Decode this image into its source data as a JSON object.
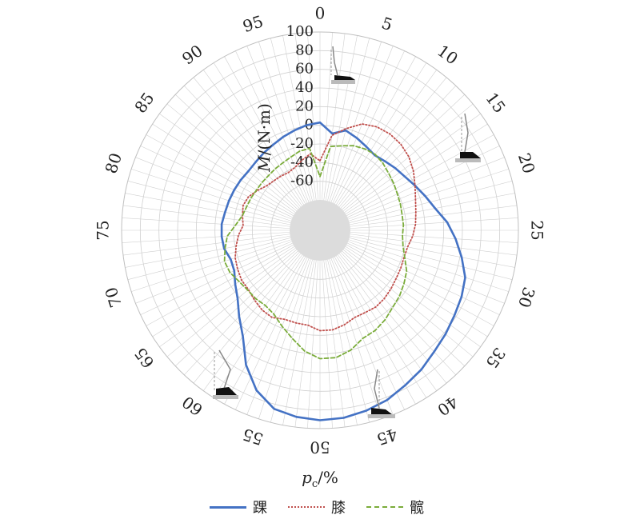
{
  "chart_data": {
    "type": "polar-line",
    "r_axis_label_italic": "M",
    "r_axis_label_rest": "/(N·m)",
    "r_ticks": [
      100,
      80,
      60,
      40,
      20,
      0,
      -20,
      -40,
      -60
    ],
    "r_range": [
      -80,
      100
    ],
    "angle_axis_label_italic": "p",
    "angle_axis_label_sub": "c",
    "angle_axis_label_rest": "/%",
    "angle_ticks": [
      0,
      5,
      10,
      15,
      20,
      25,
      30,
      35,
      40,
      45,
      50,
      55,
      60,
      65,
      70,
      75,
      80,
      85,
      90,
      95
    ],
    "angle_range": [
      0,
      100
    ],
    "direction": "clockwise",
    "zero_angle_position": "top",
    "grid": true,
    "legend_placement": "bottom",
    "x": [
      0,
      2,
      4,
      6,
      8,
      10,
      12,
      14,
      16,
      18,
      20,
      22,
      24,
      26,
      28,
      30,
      32,
      34,
      36,
      38,
      40,
      42,
      44,
      46,
      48,
      50,
      52,
      54,
      56,
      58,
      60,
      62,
      64,
      66,
      68,
      70,
      72,
      74,
      76,
      78,
      80,
      82,
      84,
      86,
      88,
      90,
      92,
      94,
      96,
      98
    ],
    "series": [
      {
        "name": "踝",
        "color": "#4472c4",
        "style": "solid",
        "values": [
          3,
          -8,
          -2,
          -6,
          -10,
          -13,
          -11,
          -8,
          -5,
          0,
          6,
          13,
          24,
          33,
          42,
          51,
          55,
          58,
          62,
          66,
          72,
          77,
          83,
          87,
          90,
          91,
          89,
          85,
          72,
          52,
          28,
          14,
          2,
          -5,
          -11,
          -12,
          -8,
          -7,
          -7,
          -9,
          -10,
          -11,
          -12,
          -13,
          -12,
          -10,
          -8,
          -5,
          -2,
          1
        ]
      },
      {
        "name": "膝",
        "color": "#c0504d",
        "style": "dotted",
        "values": [
          -38,
          -10,
          0,
          10,
          14,
          15,
          14,
          11,
          6,
          0,
          -5,
          -8,
          -10,
          -13,
          -17,
          -18,
          -17,
          -16,
          -14,
          -12,
          -11,
          -12,
          -12,
          -8,
          -5,
          -5,
          -10,
          -10,
          -10,
          -6,
          -7,
          -10,
          -13,
          -13,
          -15,
          -17,
          -21,
          -25,
          -30,
          -28,
          -26,
          -28,
          -33,
          -38,
          -40,
          -41,
          -42,
          -40,
          -35,
          -30
        ]
      },
      {
        "name": "髋",
        "color": "#7aac3a",
        "style": "dashed",
        "values": [
          -55,
          -22,
          -19,
          -15,
          -13,
          -12,
          -14,
          -17,
          -19,
          -21,
          -22,
          -23,
          -23,
          -24,
          -22,
          -17,
          -10,
          -6,
          -2,
          1,
          6,
          10,
          12,
          20,
          25,
          25,
          18,
          7,
          -2,
          -10,
          -13,
          -12,
          -12,
          -10,
          -6,
          -5,
          -9,
          -13,
          -22,
          -28,
          -30,
          -31,
          -32,
          -32,
          -32,
          -31,
          -30,
          -28,
          -25,
          -24
        ]
      }
    ]
  }
}
